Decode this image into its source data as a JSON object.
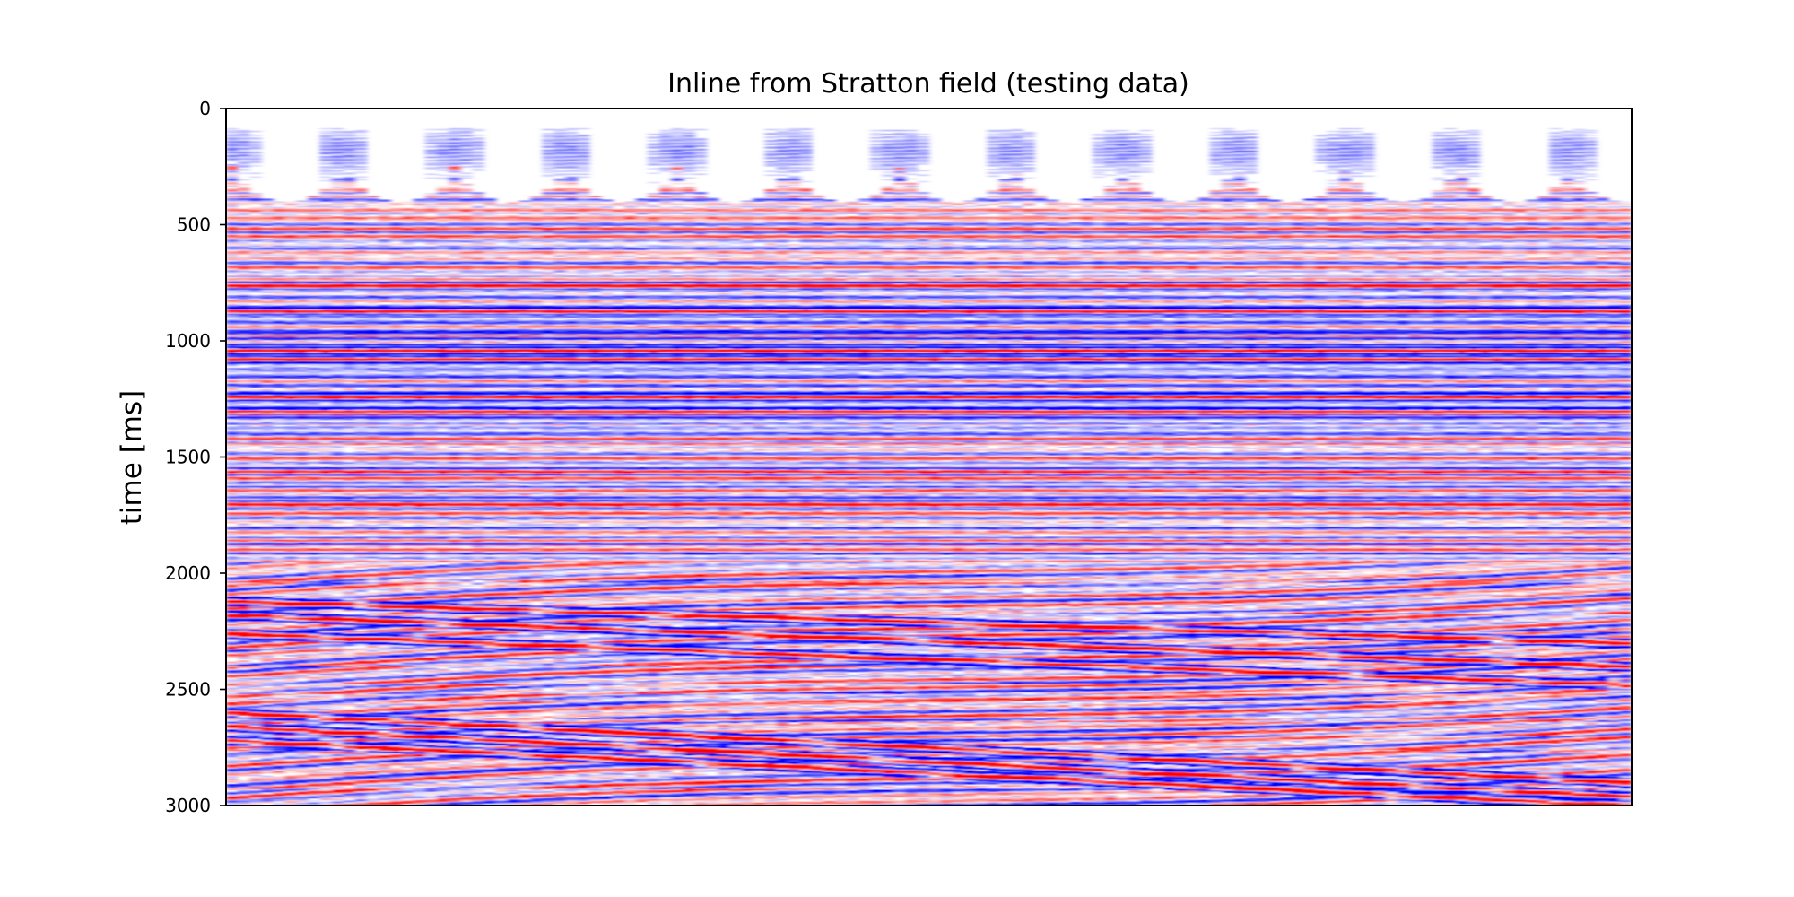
{
  "chart_data": {
    "type": "heatmap",
    "title": "Inline from Stratton field (testing data)",
    "xlabel": "",
    "ylabel": "time [ms]",
    "ylim": [
      3000,
      0
    ],
    "yticks": [
      0,
      500,
      1000,
      1500,
      2000,
      2500,
      3000
    ],
    "xticks": [],
    "colormap": [
      "#0000ff",
      "#ffffff",
      "#ff0000"
    ],
    "colors": {
      "negative": "#0000ff",
      "zero": "#ffffff",
      "positive": "#ff0000"
    },
    "grid": false,
    "legend": "none",
    "strong_reflectors_ms": [
      760,
      870,
      1000,
      1040,
      1080,
      1240,
      1300,
      1340,
      1560,
      1640,
      1700,
      1860,
      1900
    ],
    "dipping_reflectors_ms": [
      {
        "start": 2120,
        "end": 2300
      },
      {
        "start": 2180,
        "end": 2400
      },
      {
        "start": 2260,
        "end": 2480
      },
      {
        "start": 2600,
        "end": 2900
      },
      {
        "start": 2660,
        "end": 2960
      },
      {
        "start": 2720,
        "end": 3000
      }
    ],
    "mute_zone_ms": 400
  }
}
